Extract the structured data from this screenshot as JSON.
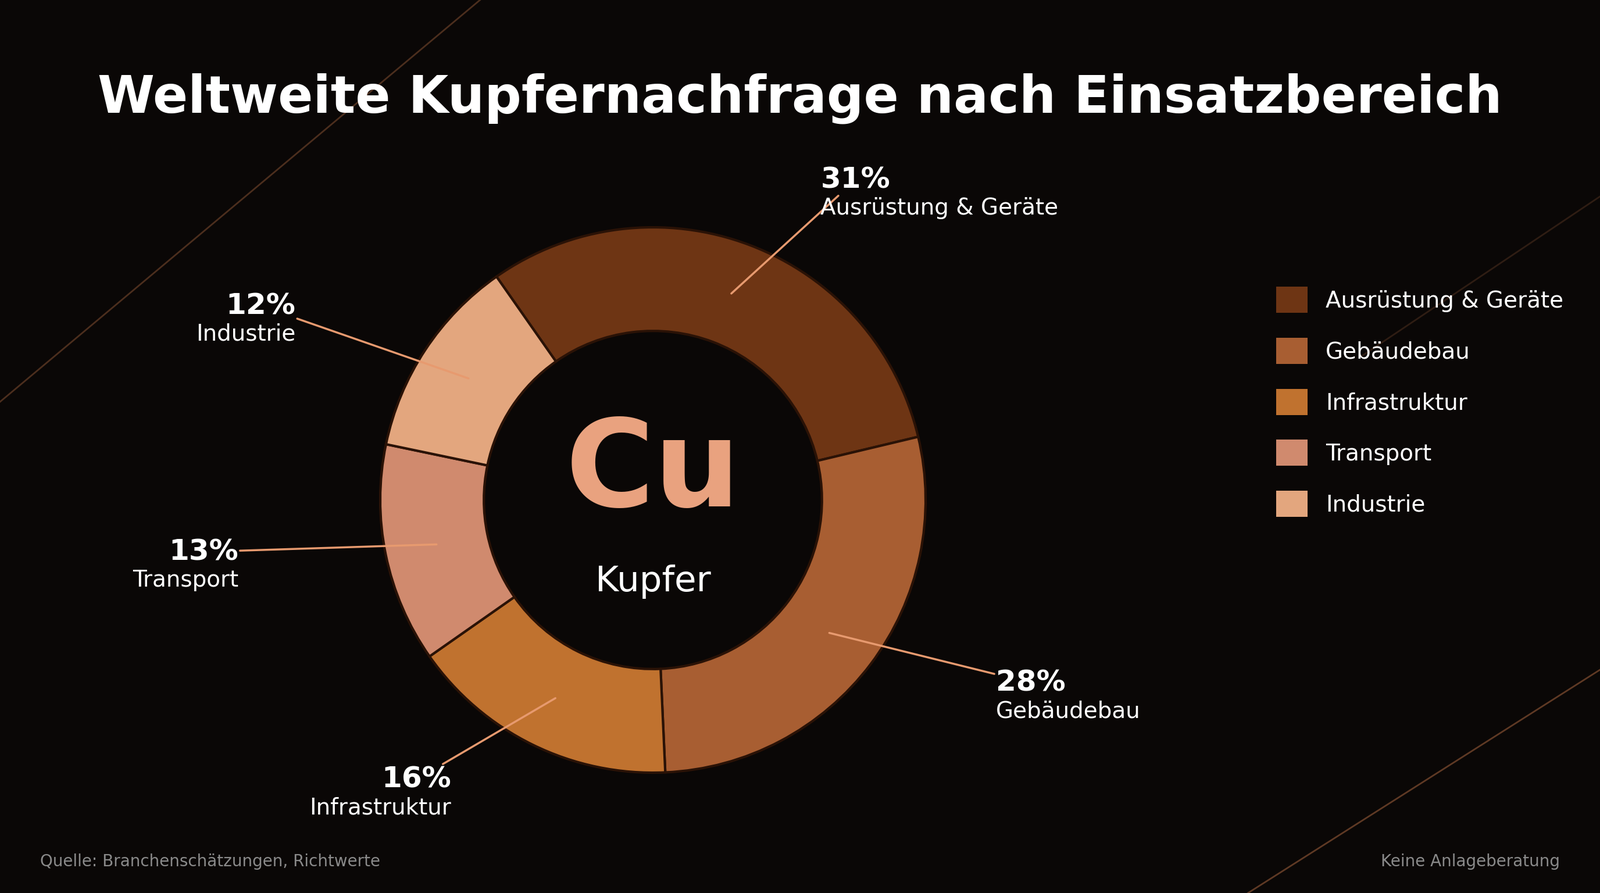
{
  "chart_data": {
    "type": "pie",
    "title": "Weltweite Kupfernachfrage nach Einsatzbereich",
    "categories": [
      "Ausrüstung & Geräte",
      "Gebäudebau",
      "Infrastruktur",
      "Transport",
      "Industrie"
    ],
    "values": [
      31,
      28,
      16,
      13,
      12
    ],
    "value_labels": [
      "31%",
      "28%",
      "16%",
      "13%",
      "12%"
    ],
    "colors": [
      "#6e3514",
      "#a85e32",
      "#c0722f",
      "#d08a6e",
      "#e3a67e"
    ],
    "legend": "right",
    "data_labels": true,
    "annotations": {
      "center": "Cu",
      "center_subtitle": "Kupfer",
      "source": "Quelle: Branchenschätzungen, Richtwerte",
      "disclaimer": "Keine Anlageberatung"
    }
  }
}
